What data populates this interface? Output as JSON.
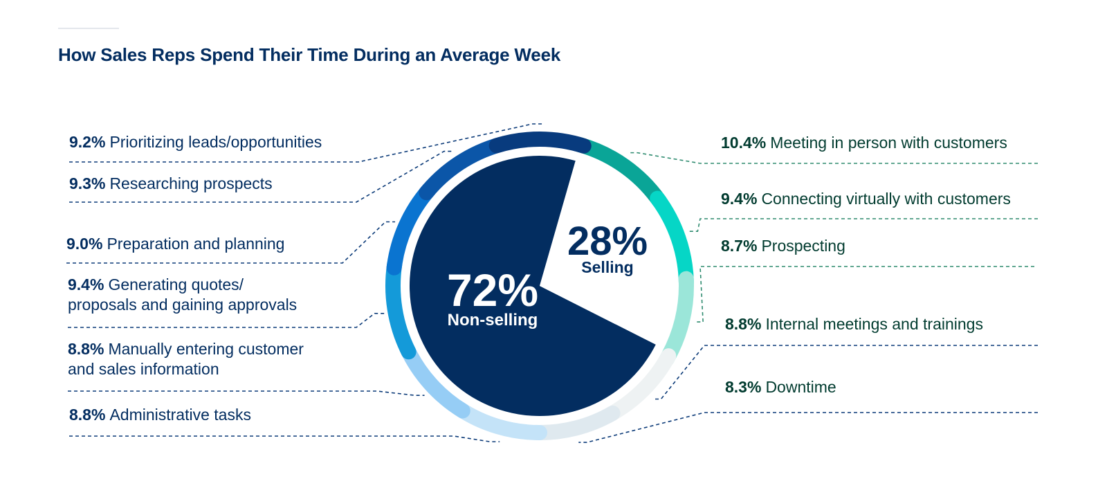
{
  "title": "How Sales Reps Spend Their Time During an Average Week",
  "colors": {
    "title": "#032d60",
    "non_selling_pie": "#032d60",
    "selling_pie": "#ffffff",
    "leader_nonselling": "#0b3a78",
    "leader_selling": "#2e8b6f"
  },
  "chart_data": {
    "type": "pie",
    "title": "How Sales Reps Spend Their Time During an Average Week",
    "inner": {
      "slices": [
        {
          "name": "Selling",
          "value": 28,
          "label": "28%",
          "caption": "Selling"
        },
        {
          "name": "Non-selling",
          "value": 72,
          "label": "72%",
          "caption": "Non-selling"
        }
      ]
    },
    "outer_ring": {
      "segments": [
        {
          "category": "Selling",
          "value": 10.4,
          "pct": "10.4%",
          "label": "Meeting in person with customers",
          "color": "#0aa597"
        },
        {
          "category": "Selling",
          "value": 9.4,
          "pct": "9.4%",
          "label": "Connecting virtually with customers",
          "color": "#06d6c6"
        },
        {
          "category": "Selling",
          "value": 8.7,
          "pct": "8.7%",
          "label": "Prospecting",
          "color": "#9be6d9"
        },
        {
          "category": "Non-selling",
          "value": 8.8,
          "pct": "8.8%",
          "label": "Internal meetings and trainings",
          "color": "#eef2f3"
        },
        {
          "category": "Non-selling",
          "value": 8.3,
          "pct": "8.3%",
          "label": "Downtime",
          "color": "#dfe9ef"
        },
        {
          "category": "Non-selling",
          "value": 8.8,
          "pct": "8.8%",
          "label": "Administrative tasks",
          "color": "#c4e3f8"
        },
        {
          "category": "Non-selling",
          "value": 8.8,
          "pct": "8.8%",
          "label": [
            "Manually entering customer",
            "and sales information"
          ],
          "color": "#96cdf5"
        },
        {
          "category": "Non-selling",
          "value": 9.4,
          "pct": "9.4%",
          "label": [
            "Generating quotes/",
            "proposals and gaining approvals"
          ],
          "color": "#149ad9"
        },
        {
          "category": "Non-selling",
          "value": 9.0,
          "pct": "9.0%",
          "label": "Preparation and planning",
          "color": "#0a74d0"
        },
        {
          "category": "Non-selling",
          "value": 9.3,
          "pct": "9.3%",
          "label": "Researching prospects",
          "color": "#0b56a8"
        },
        {
          "category": "Non-selling",
          "value": 9.2,
          "pct": "9.2%",
          "label": "Prioritizing leads/opportunities",
          "color": "#083b7e"
        }
      ]
    }
  }
}
